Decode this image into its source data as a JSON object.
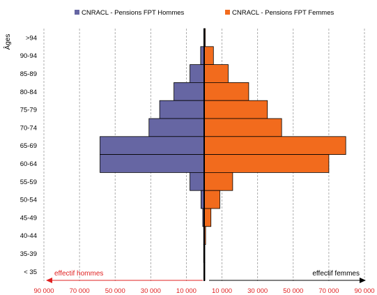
{
  "chart_data": {
    "type": "bar",
    "orientation": "horizontal-population-pyramid",
    "yaxis_title": "Âges",
    "categories": [
      ">94",
      "90-94",
      "85-89",
      "80-84",
      "75-79",
      "70-74",
      "65-69",
      "60-64",
      "55-59",
      "50-54",
      "45-49",
      "40-44",
      "35-39",
      "< 35"
    ],
    "series": [
      {
        "name": "CNRACL - Pensions FPT Hommes",
        "side": "left",
        "color": "#6666a3",
        "values": [
          200,
          2000,
          8000,
          17000,
          25000,
          31000,
          58500,
          58500,
          8000,
          1800,
          800,
          300,
          300,
          200
        ]
      },
      {
        "name": "CNRACL - Pensions FPT Femmes",
        "side": "right",
        "color": "#f26b1d",
        "values": [
          600,
          5200,
          13500,
          25000,
          35500,
          43500,
          79500,
          70000,
          16000,
          8800,
          3800,
          800,
          400,
          400
        ]
      }
    ],
    "xaxis": {
      "tick_labels": [
        "90 000",
        "70 000",
        "50 000",
        "30 000",
        "10 000",
        "10 000",
        "30 000",
        "50 000",
        "70 000",
        "90 000"
      ],
      "tick_values": [
        -90000,
        -70000,
        -50000,
        -30000,
        -10000,
        10000,
        30000,
        50000,
        70000,
        90000
      ],
      "range": [
        -90000,
        90000
      ],
      "label_color": "#e02020"
    },
    "annotations": {
      "left_arrow_label": "effectif hommes",
      "right_arrow_label": "effectif femmes",
      "left_arrow_color": "#e02020",
      "right_arrow_color": "#000000"
    },
    "grid": "vertical-dashed",
    "legend_position": "top"
  }
}
